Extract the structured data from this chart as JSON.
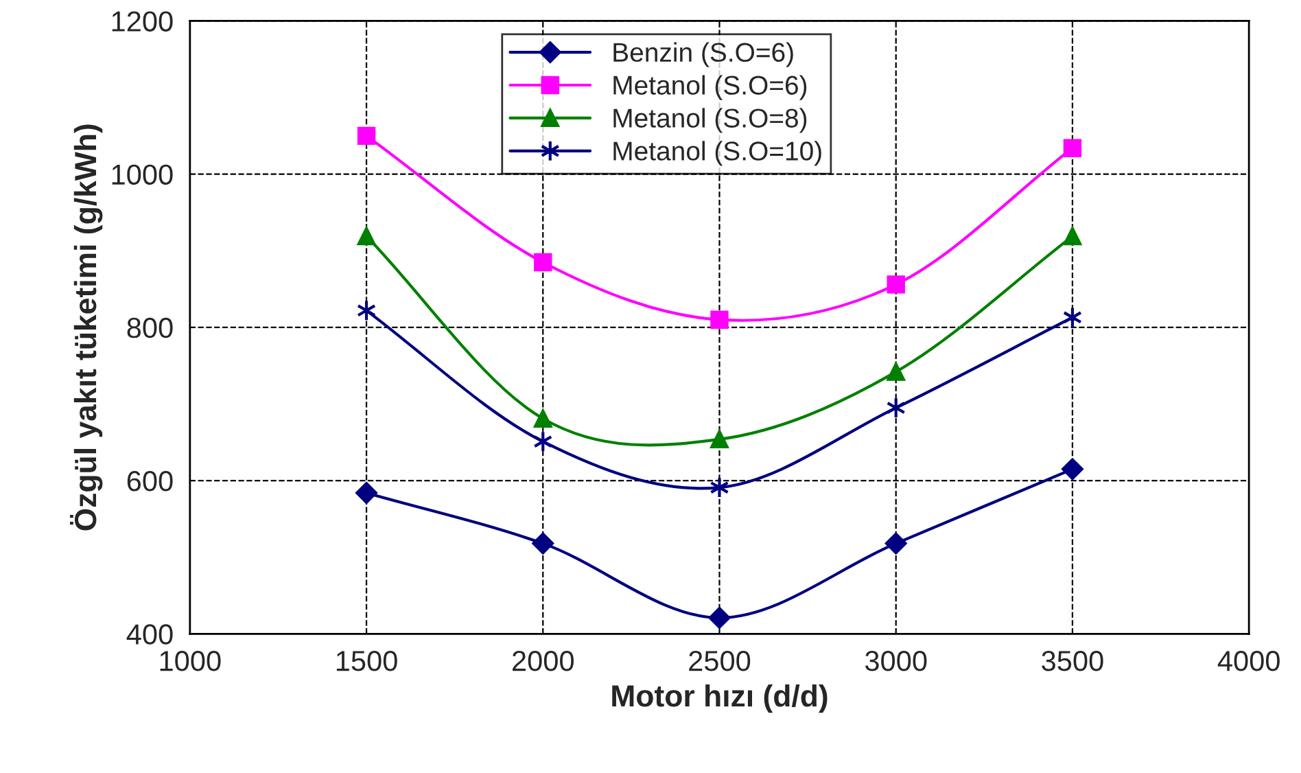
{
  "chart_data": {
    "type": "line",
    "xlabel": "Motor hızı (d/d)",
    "ylabel": "Özgül yakıt tüketimi (g/kWh)",
    "x": [
      1500,
      2000,
      2500,
      3000,
      3500
    ],
    "series": [
      {
        "name": "Benzin (S.O=6)",
        "color": "#000080",
        "marker": "diamond",
        "values": [
          584,
          518,
          421,
          518,
          615
        ]
      },
      {
        "name": "Metanol (S.O=6)",
        "color": "#ff00ff",
        "marker": "square",
        "values": [
          1050,
          885,
          810,
          856,
          1034
        ]
      },
      {
        "name": "Metanol (S.O=8)",
        "color": "#008000",
        "marker": "triangle",
        "values": [
          919,
          681,
          654,
          742,
          919
        ]
      },
      {
        "name": "Metanol (S.O=10)",
        "color": "#000080",
        "marker": "cross",
        "values": [
          822,
          651,
          591,
          695,
          813
        ]
      }
    ],
    "xlim": [
      1000,
      4000
    ],
    "xticks": [
      1000,
      1500,
      2000,
      2500,
      3000,
      3500,
      4000
    ],
    "ylim": [
      400,
      1200
    ],
    "yticks": [
      400,
      600,
      800,
      1000,
      1200
    ],
    "grid": true,
    "legend": "top",
    "line_style": "solid"
  }
}
